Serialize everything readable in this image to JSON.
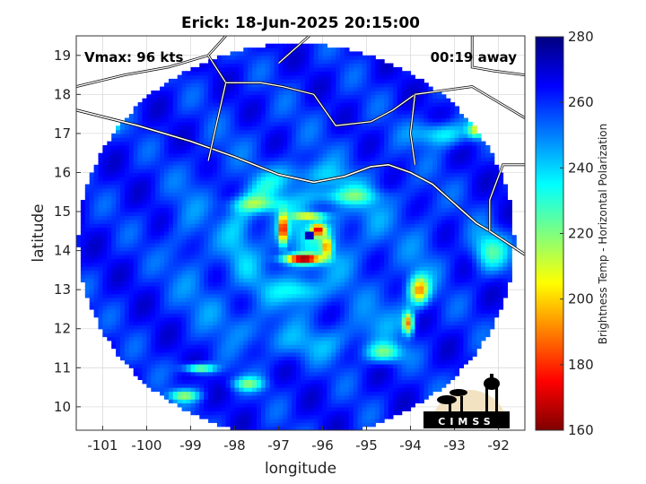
{
  "chart_data": {
    "type": "heatmap",
    "title": "Erick: 18-Jun-2025 20:15:00",
    "xlabel": "longitude",
    "ylabel": "latitude",
    "xlim": [
      -101.6,
      -91.4
    ],
    "ylim": [
      9.4,
      19.5
    ],
    "x_ticks": [
      -101,
      -100,
      -99,
      -98,
      -97,
      -96,
      -95,
      -94,
      -93,
      -92
    ],
    "y_ticks": [
      10,
      11,
      12,
      13,
      14,
      15,
      16,
      17,
      18,
      19
    ],
    "grid": true,
    "annotations": {
      "left": "Vmax: 96 kts",
      "right": "00:19 away"
    },
    "colorbar": {
      "label": "Brightness Temp - Horizontal Polarization",
      "min": 160,
      "max": 280,
      "ticks": [
        160,
        180,
        200,
        220,
        240,
        260,
        280
      ]
    },
    "storm_center": {
      "lon": -96.3,
      "lat": 14.4
    },
    "swath_center": {
      "lon": -96.6,
      "lat": 14.25
    },
    "swath_radius_deg": 5.05,
    "coastline": [
      [
        -101.6,
        17.6
      ],
      [
        -100.2,
        17.2
      ],
      [
        -99.0,
        16.8
      ],
      [
        -98.0,
        16.4
      ],
      [
        -97.0,
        15.95
      ],
      [
        -96.2,
        15.75
      ],
      [
        -95.5,
        15.9
      ],
      [
        -94.9,
        16.15
      ],
      [
        -94.5,
        16.2
      ],
      [
        -94.0,
        16.0
      ],
      [
        -93.5,
        15.7
      ],
      [
        -93.0,
        15.2
      ],
      [
        -92.5,
        14.7
      ],
      [
        -92.2,
        14.5
      ],
      [
        -91.4,
        13.9
      ]
    ],
    "borders": [
      [
        [
          -92.6,
          19.5
        ],
        [
          -92.6,
          18.7
        ],
        [
          -92.1,
          18.6
        ],
        [
          -91.4,
          18.5
        ]
      ],
      [
        [
          -92.2,
          14.5
        ],
        [
          -92.2,
          15.3
        ],
        [
          -91.9,
          16.2
        ],
        [
          -91.4,
          16.2
        ]
      ],
      [
        [
          -101.6,
          18.2
        ],
        [
          -100.5,
          18.5
        ],
        [
          -99.5,
          18.7
        ],
        [
          -98.6,
          19.0
        ],
        [
          -98.2,
          19.5
        ]
      ],
      [
        [
          -98.6,
          16.3
        ],
        [
          -98.4,
          17.3
        ],
        [
          -98.2,
          18.3
        ],
        [
          -98.6,
          19.0
        ]
      ],
      [
        [
          -98.2,
          18.3
        ],
        [
          -97.4,
          18.3
        ],
        [
          -96.9,
          18.2
        ],
        [
          -96.2,
          18.0
        ],
        [
          -95.7,
          17.2
        ],
        [
          -94.9,
          17.3
        ],
        [
          -94.4,
          17.6
        ],
        [
          -93.9,
          18.0
        ],
        [
          -92.6,
          18.2
        ],
        [
          -92.0,
          17.8
        ],
        [
          -91.4,
          17.4
        ]
      ],
      [
        [
          -93.9,
          16.2
        ],
        [
          -94.0,
          17.0
        ],
        [
          -93.9,
          18.0
        ]
      ],
      [
        [
          -97.0,
          18.8
        ],
        [
          -96.3,
          19.5
        ]
      ]
    ],
    "features": [
      {
        "lon": -96.45,
        "lat": 13.8,
        "sx": 0.42,
        "sy": 0.12,
        "amp": 95
      },
      {
        "lon": -96.9,
        "lat": 14.55,
        "sx": 0.1,
        "sy": 0.38,
        "amp": 80
      },
      {
        "lon": -96.1,
        "lat": 14.55,
        "sx": 0.16,
        "sy": 0.16,
        "amp": 70
      },
      {
        "lon": -96.3,
        "lat": 14.9,
        "sx": 0.35,
        "sy": 0.08,
        "amp": 55
      },
      {
        "lon": -95.9,
        "lat": 14.1,
        "sx": 0.12,
        "sy": 0.25,
        "amp": 55
      },
      {
        "lon": -93.8,
        "lat": 13.0,
        "sx": 0.22,
        "sy": 0.35,
        "amp": 60
      },
      {
        "lon": -94.05,
        "lat": 12.15,
        "sx": 0.12,
        "sy": 0.28,
        "amp": 70
      },
      {
        "lon": -94.6,
        "lat": 11.4,
        "sx": 0.4,
        "sy": 0.25,
        "amp": 40
      },
      {
        "lon": -98.8,
        "lat": 11.0,
        "sx": 0.35,
        "sy": 0.12,
        "amp": 50
      },
      {
        "lon": -99.15,
        "lat": 10.3,
        "sx": 0.35,
        "sy": 0.15,
        "amp": 40
      },
      {
        "lon": -97.7,
        "lat": 10.6,
        "sx": 0.35,
        "sy": 0.18,
        "amp": 35
      },
      {
        "lon": -93.3,
        "lat": 17.0,
        "sx": 0.6,
        "sy": 0.3,
        "amp": 30
      },
      {
        "lon": -92.5,
        "lat": 17.1,
        "sx": 0.2,
        "sy": 0.2,
        "amp": 50
      },
      {
        "lon": -92.2,
        "lat": 14.0,
        "sx": 0.4,
        "sy": 0.5,
        "amp": 32
      },
      {
        "lon": -97.5,
        "lat": 15.2,
        "sx": 0.6,
        "sy": 0.2,
        "amp": 28
      },
      {
        "lon": -95.5,
        "lat": 15.4,
        "sx": 0.8,
        "sy": 0.2,
        "amp": 22
      },
      {
        "lon": -96.5,
        "lat": 13.0,
        "sx": 0.5,
        "sy": 0.3,
        "amp": 26
      },
      {
        "lon": -100.8,
        "lat": 17.2,
        "sx": 0.15,
        "sy": 0.15,
        "amp": 40
      }
    ],
    "logo": {
      "text": "CIMSS",
      "bg_color": "#f2e2c2",
      "fg_color": "#000000"
    }
  }
}
